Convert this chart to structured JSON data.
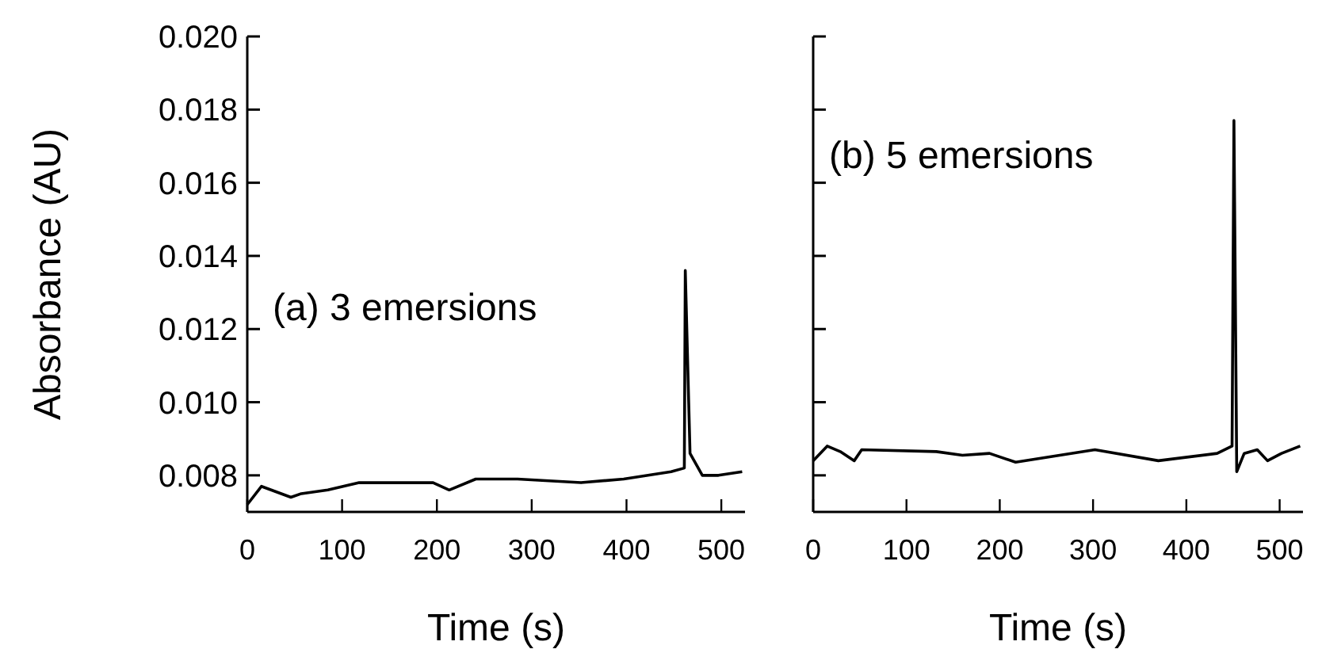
{
  "chart_data": [
    {
      "type": "line",
      "ylabel": "Absorbance   (AU)",
      "xlabel": "Time   (s)",
      "annotations": [
        "(a)  3 emersions"
      ],
      "xlim": [
        0,
        525
      ],
      "ylim": [
        0.007,
        0.02
      ],
      "xticks": [
        0,
        100,
        200,
        300,
        400,
        500
      ],
      "yticks": [
        {
          "value": 0.008,
          "label": "0.008"
        },
        {
          "value": 0.01,
          "label": "0.010"
        },
        {
          "value": 0.012,
          "label": "0.012"
        },
        {
          "value": 0.014,
          "label": "0.014"
        },
        {
          "value": 0.016,
          "label": "0.016"
        },
        {
          "value": 0.018,
          "label": "0.018"
        },
        {
          "value": 0.02,
          "label": "0.020"
        }
      ],
      "series": [
        {
          "color": "#000000",
          "x": [
            0,
            15,
            46,
            57,
            85,
            118,
            196,
            213,
            241,
            285,
            352,
            397,
            447,
            461,
            462,
            467,
            480,
            497,
            522
          ],
          "values": [
            0.0072,
            0.0077,
            0.0074,
            0.0075,
            0.0076,
            0.0078,
            0.0078,
            0.0076,
            0.0079,
            0.0079,
            0.0078,
            0.0079,
            0.0081,
            0.0082,
            0.0136,
            0.0086,
            0.008,
            0.008,
            0.0081
          ]
        }
      ]
    },
    {
      "type": "line",
      "xlabel": "Time   (s)",
      "annotations": [
        "(b)  5 emersions"
      ],
      "xlim": [
        0,
        525
      ],
      "ylim": [
        0.007,
        0.02
      ],
      "xticks": [
        0,
        100,
        200,
        300,
        400,
        500
      ],
      "tick_labels": "x",
      "yticks": [
        {
          "value": 0.008,
          "label": null
        },
        {
          "value": 0.01,
          "label": null
        },
        {
          "value": 0.012,
          "label": null
        },
        {
          "value": 0.014,
          "label": null
        },
        {
          "value": 0.016,
          "label": null
        },
        {
          "value": 0.018,
          "label": null
        },
        {
          "value": 0.02,
          "label": null
        }
      ],
      "series": [
        {
          "color": "#000000",
          "x": [
            0,
            15,
            29,
            44,
            52,
            132,
            160,
            189,
            217,
            302,
            370,
            433,
            449,
            451,
            454,
            462,
            476,
            487,
            502,
            522
          ],
          "values": [
            0.0084,
            0.0088,
            0.00865,
            0.0084,
            0.0087,
            0.00865,
            0.00855,
            0.0086,
            0.00836,
            0.0087,
            0.0084,
            0.0086,
            0.0088,
            0.0177,
            0.0081,
            0.0086,
            0.0087,
            0.0084,
            0.0086,
            0.0088
          ]
        }
      ]
    }
  ]
}
